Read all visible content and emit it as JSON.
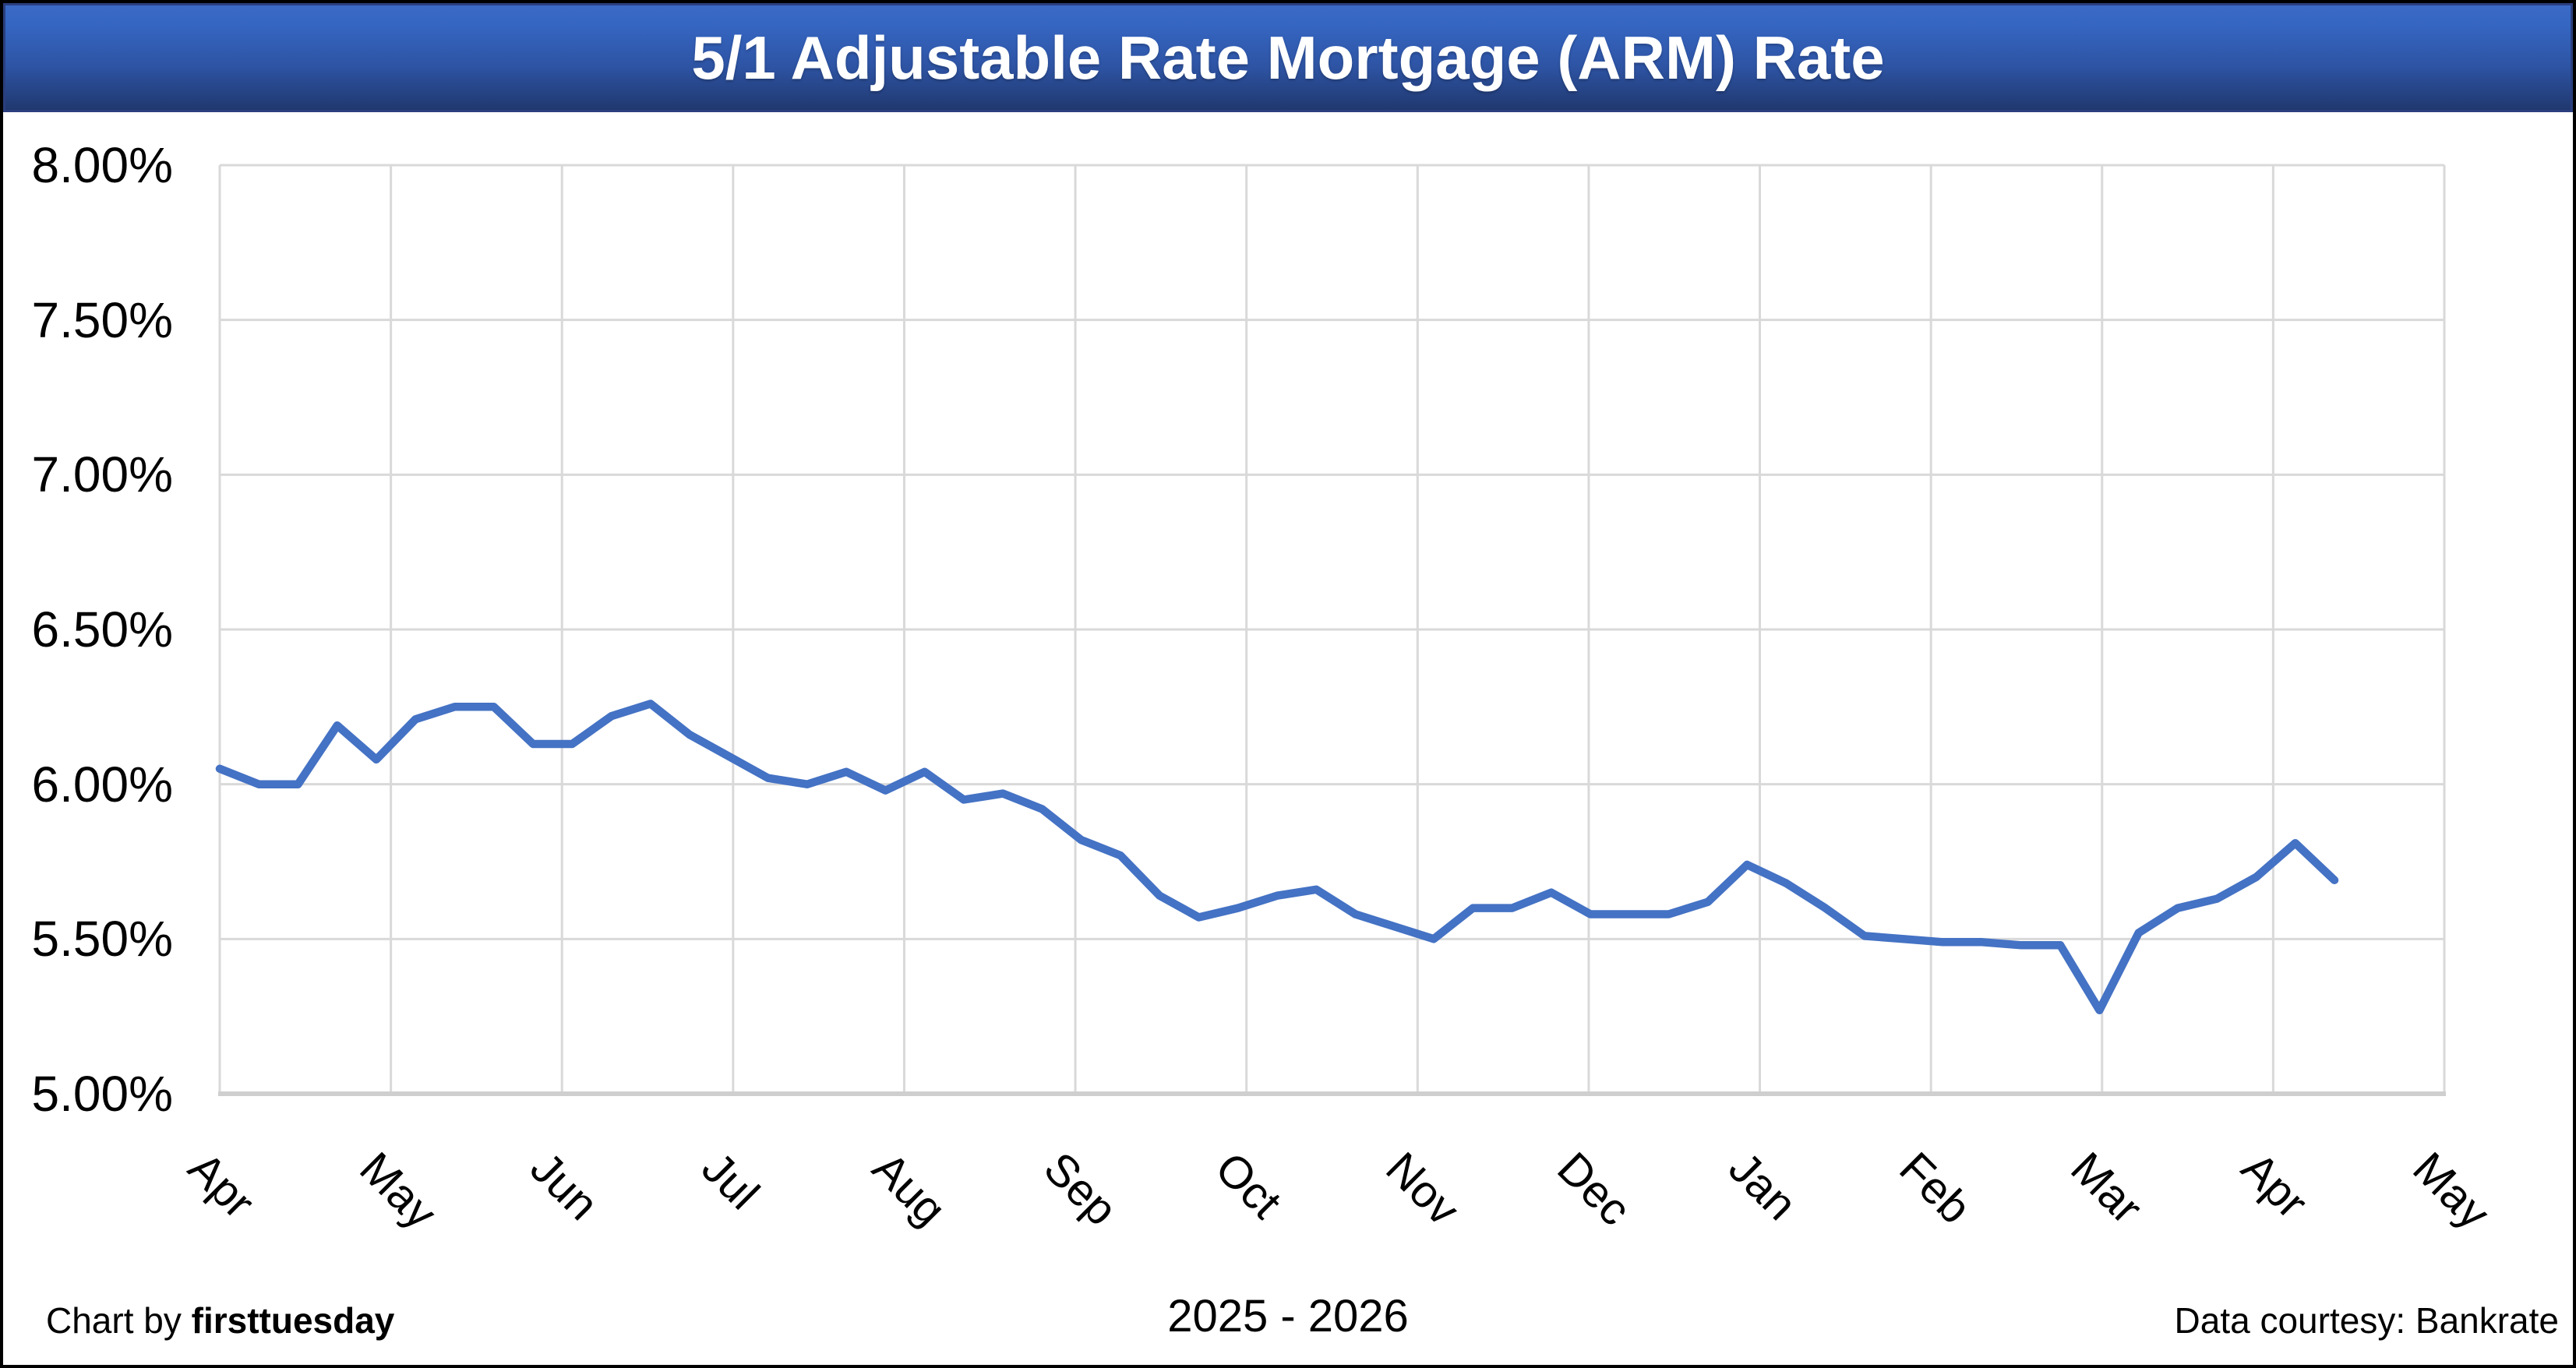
{
  "title_bar": {
    "title": "5/1 Adjustable Rate Mortgage (ARM) Rate"
  },
  "footer": {
    "credit_prefix": "Chart by ",
    "credit_brand": "firsttuesday",
    "period": "2025 - 2026",
    "source": "Data courtesy: Bankrate"
  },
  "colors": {
    "line": "#4472C4",
    "gridline": "#D9D9D9",
    "axis_line": "#CFCFCF",
    "title_bar_top": "#3A6AC6",
    "title_bar_bottom": "#20386F",
    "title_border": "#2B3F7E",
    "title_text": "#FFFFFF",
    "background": "#FFFFFF"
  },
  "chart_data": {
    "type": "line",
    "title": "5/1 Adjustable Rate Mortgage (ARM) Rate",
    "xlabel": "",
    "ylabel": "",
    "ylim": [
      5.0,
      8.0
    ],
    "grid": true,
    "legend_position": "none",
    "y_ticks": [
      "8.00%",
      "7.50%",
      "7.00%",
      "6.50%",
      "6.00%",
      "5.50%",
      "5.00%"
    ],
    "y_tick_values": [
      8.0,
      7.5,
      7.0,
      6.5,
      6.0,
      5.5,
      5.0
    ],
    "x_tick_labels": [
      "Apr",
      "May",
      "Jun",
      "Jul",
      "Aug",
      "Sep",
      "Oct",
      "Nov",
      "Dec",
      "Jan",
      "Feb",
      "Mar",
      "Apr",
      "May"
    ],
    "x_period": "2025 - 2026",
    "series": [
      {
        "name": "5/1 ARM rate",
        "unit": "percent",
        "frequency": "weekly",
        "values": [
          6.05,
          6.0,
          6.0,
          6.19,
          6.08,
          6.21,
          6.25,
          6.25,
          6.13,
          6.13,
          6.22,
          6.26,
          6.16,
          6.09,
          6.02,
          6.0,
          6.04,
          5.98,
          6.04,
          5.95,
          5.97,
          5.92,
          5.82,
          5.77,
          5.64,
          5.57,
          5.6,
          5.64,
          5.66,
          5.58,
          5.54,
          5.5,
          5.6,
          5.6,
          5.65,
          5.58,
          5.58,
          5.58,
          5.62,
          5.74,
          5.68,
          5.6,
          5.51,
          5.5,
          5.49,
          5.49,
          5.48,
          5.48,
          5.27,
          5.52,
          5.6,
          5.63,
          5.7,
          5.81,
          5.69
        ]
      }
    ],
    "source_note": "Data courtesy: Bankrate",
    "credit_note": "Chart by firsttuesday"
  }
}
